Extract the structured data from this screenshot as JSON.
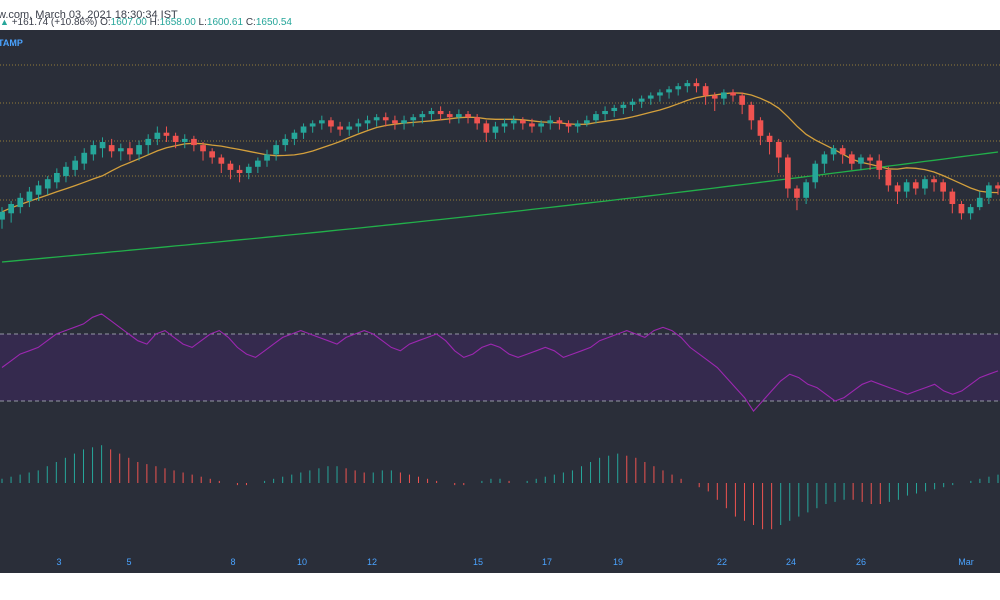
{
  "header": {
    "source": "w.com, March 03, 2021 18:30:34 IST",
    "change": "+161.74 (+10.86%)",
    "ohlc": [
      {
        "label": "O:",
        "value": "1607.00"
      },
      {
        "label": "H:",
        "value": "1658.00"
      },
      {
        "label": "L:",
        "value": "1600.61"
      },
      {
        "label": "C:",
        "value": "1650.54"
      }
    ],
    "exchange": "TAMP"
  },
  "colors": {
    "background": "#2a2e39",
    "up": "#26a69a",
    "down": "#ef5350",
    "ma_short": "#d4a03c",
    "ma_long": "#22b04a",
    "rsi": "#9c27b0",
    "rsi_band": "#3a2a55",
    "level": "#b8963a",
    "axis_text": "#4aa3ff"
  },
  "chart_data": [
    {
      "type": "candlestick",
      "x_ticks": [
        "3",
        "5",
        "8",
        "10",
        "12",
        "15",
        "17",
        "19",
        "22",
        "24",
        "26",
        "Mar"
      ],
      "overlays": [
        {
          "color": "#d4a03c",
          "kind": "moving-average-short"
        },
        {
          "color": "#22b04a",
          "kind": "moving-average-long"
        }
      ],
      "horizontal_levels": 5,
      "candles": [
        [
          10,
          15,
          4,
          18
        ],
        [
          14,
          20,
          8,
          22
        ],
        [
          18,
          24,
          14,
          27
        ],
        [
          22,
          28,
          18,
          31
        ],
        [
          26,
          32,
          22,
          35
        ],
        [
          30,
          36,
          26,
          38
        ],
        [
          34,
          40,
          30,
          43
        ],
        [
          38,
          44,
          34,
          47
        ],
        [
          42,
          48,
          38,
          51
        ],
        [
          46,
          53,
          42,
          56
        ],
        [
          52,
          58,
          48,
          61
        ],
        [
          56,
          60,
          50,
          63
        ],
        [
          58,
          54,
          50,
          62
        ],
        [
          54,
          56,
          48,
          59
        ],
        [
          56,
          52,
          48,
          60
        ],
        [
          52,
          58,
          48,
          61
        ],
        [
          58,
          62,
          52,
          65
        ],
        [
          62,
          66,
          58,
          70
        ],
        [
          66,
          64,
          60,
          70
        ],
        [
          64,
          60,
          56,
          66
        ],
        [
          60,
          62,
          56,
          65
        ],
        [
          62,
          58,
          54,
          64
        ],
        [
          58,
          54,
          48,
          60
        ],
        [
          54,
          50,
          46,
          56
        ],
        [
          50,
          46,
          40,
          52
        ],
        [
          46,
          42,
          36,
          48
        ],
        [
          42,
          40,
          34,
          45
        ],
        [
          40,
          44,
          36,
          46
        ],
        [
          44,
          48,
          40,
          50
        ],
        [
          48,
          52,
          44,
          55
        ],
        [
          52,
          58,
          48,
          61
        ],
        [
          58,
          62,
          54,
          65
        ],
        [
          62,
          66,
          58,
          68
        ],
        [
          66,
          70,
          62,
          72
        ],
        [
          70,
          72,
          66,
          74
        ],
        [
          72,
          74,
          68,
          77
        ],
        [
          74,
          70,
          66,
          76
        ],
        [
          70,
          68,
          64,
          73
        ],
        [
          68,
          70,
          64,
          73
        ],
        [
          70,
          72,
          66,
          75
        ],
        [
          72,
          74,
          68,
          77
        ],
        [
          74,
          76,
          70,
          78
        ],
        [
          76,
          74,
          70,
          79
        ],
        [
          74,
          72,
          68,
          77
        ],
        [
          72,
          74,
          68,
          77
        ],
        [
          74,
          76,
          70,
          78
        ],
        [
          76,
          78,
          72,
          80
        ],
        [
          78,
          80,
          74,
          82
        ],
        [
          80,
          78,
          74,
          83
        ],
        [
          78,
          76,
          72,
          80
        ],
        [
          76,
          78,
          72,
          81
        ],
        [
          78,
          76,
          72,
          80
        ],
        [
          76,
          72,
          68,
          78
        ],
        [
          72,
          66,
          60,
          74
        ],
        [
          66,
          70,
          62,
          73
        ],
        [
          70,
          72,
          66,
          75
        ],
        [
          72,
          74,
          68,
          77
        ],
        [
          74,
          72,
          68,
          76
        ],
        [
          72,
          70,
          66,
          75
        ],
        [
          70,
          72,
          66,
          74
        ],
        [
          72,
          74,
          68,
          77
        ],
        [
          74,
          72,
          68,
          76
        ],
        [
          72,
          70,
          66,
          74
        ],
        [
          70,
          72,
          66,
          74
        ],
        [
          72,
          74,
          70,
          77
        ],
        [
          74,
          78,
          72,
          80
        ],
        [
          78,
          80,
          74,
          83
        ],
        [
          80,
          82,
          76,
          84
        ],
        [
          82,
          84,
          78,
          86
        ],
        [
          84,
          86,
          80,
          88
        ],
        [
          86,
          88,
          82,
          90
        ],
        [
          88,
          90,
          84,
          92
        ],
        [
          90,
          92,
          86,
          94
        ],
        [
          92,
          94,
          88,
          96
        ],
        [
          94,
          96,
          90,
          98
        ],
        [
          96,
          98,
          92,
          100
        ],
        [
          98,
          96,
          92,
          101
        ],
        [
          96,
          90,
          84,
          98
        ],
        [
          90,
          88,
          80,
          92
        ],
        [
          88,
          92,
          84,
          94
        ],
        [
          92,
          90,
          86,
          94
        ],
        [
          90,
          84,
          78,
          92
        ],
        [
          84,
          74,
          68,
          86
        ],
        [
          74,
          64,
          58,
          76
        ],
        [
          64,
          60,
          52,
          66
        ],
        [
          60,
          50,
          40,
          62
        ],
        [
          50,
          30,
          24,
          52
        ],
        [
          30,
          24,
          16,
          32
        ],
        [
          24,
          34,
          20,
          36
        ],
        [
          34,
          46,
          30,
          48
        ],
        [
          46,
          52,
          40,
          54
        ],
        [
          52,
          56,
          48,
          58
        ],
        [
          56,
          52,
          46,
          58
        ],
        [
          52,
          46,
          42,
          54
        ],
        [
          46,
          50,
          42,
          52
        ],
        [
          50,
          48,
          42,
          52
        ],
        [
          48,
          42,
          36,
          52
        ],
        [
          42,
          32,
          28,
          44
        ],
        [
          32,
          28,
          20,
          34
        ],
        [
          28,
          34,
          24,
          36
        ],
        [
          34,
          30,
          26,
          36
        ],
        [
          30,
          36,
          26,
          38
        ],
        [
          36,
          34,
          28,
          38
        ],
        [
          34,
          28,
          22,
          36
        ],
        [
          28,
          20,
          14,
          30
        ],
        [
          20,
          14,
          10,
          22
        ],
        [
          14,
          18,
          10,
          20
        ],
        [
          18,
          24,
          16,
          28
        ],
        [
          24,
          32,
          20,
          34
        ],
        [
          32,
          30,
          26,
          34
        ]
      ]
    },
    {
      "type": "line",
      "panel": "oscillator",
      "band": {
        "upper": 70,
        "lower": 30
      },
      "values": [
        50,
        54,
        58,
        60,
        62,
        66,
        70,
        72,
        74,
        76,
        80,
        82,
        78,
        74,
        70,
        66,
        64,
        70,
        72,
        68,
        64,
        62,
        66,
        70,
        72,
        68,
        62,
        58,
        56,
        60,
        64,
        68,
        70,
        72,
        70,
        68,
        66,
        64,
        68,
        70,
        72,
        70,
        66,
        62,
        60,
        64,
        66,
        68,
        70,
        66,
        60,
        56,
        58,
        62,
        64,
        62,
        58,
        56,
        58,
        60,
        62,
        60,
        56,
        58,
        60,
        62,
        66,
        68,
        70,
        72,
        70,
        68,
        72,
        74,
        72,
        68,
        62,
        58,
        54,
        50,
        44,
        38,
        32,
        24,
        30,
        36,
        42,
        46,
        44,
        40,
        38,
        34,
        30,
        32,
        36,
        40,
        42,
        40,
        38,
        36,
        34,
        36,
        38,
        40,
        36,
        34,
        36,
        40,
        44,
        46,
        48
      ]
    },
    {
      "type": "bar",
      "panel": "histogram",
      "values": [
        2,
        3,
        4,
        5,
        6,
        8,
        10,
        12,
        14,
        16,
        17,
        18,
        16,
        14,
        12,
        10,
        9,
        8,
        7,
        6,
        5,
        4,
        3,
        2,
        1,
        0,
        -1,
        -1,
        0,
        1,
        2,
        3,
        4,
        5,
        6,
        7,
        8,
        8,
        7,
        6,
        5,
        5,
        6,
        6,
        5,
        4,
        3,
        2,
        1,
        0,
        -1,
        -1,
        0,
        1,
        2,
        2,
        1,
        0,
        1,
        2,
        3,
        4,
        5,
        6,
        8,
        10,
        12,
        13,
        14,
        13,
        12,
        10,
        8,
        6,
        4,
        2,
        0,
        -2,
        -4,
        -8,
        -12,
        -16,
        -18,
        -20,
        -22,
        -22,
        -20,
        -18,
        -16,
        -14,
        -12,
        -10,
        -9,
        -8,
        -8,
        -9,
        -10,
        -10,
        -9,
        -8,
        -6,
        -5,
        -4,
        -3,
        -2,
        -1,
        0,
        1,
        2,
        3,
        4
      ]
    }
  ]
}
